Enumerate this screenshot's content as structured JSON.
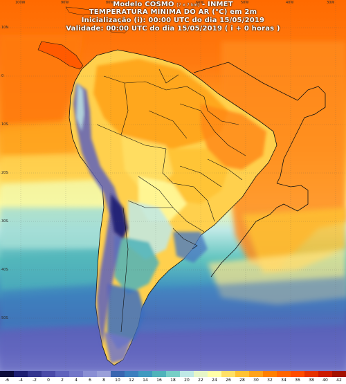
{
  "header": {
    "line1": "Modelo COSMO",
    "line1_res": "[7 x 7 km]",
    "line1_org": "- INMET",
    "line2": "TEMPERATURA MÍNIMA DO AR (°C) em 2m",
    "line3": "Inicialização (i): 00:00 UTC do dia 15/05/2019",
    "line4": "Validade: 00:00 UTC do dia 15/05/2019 ( i + 0 horas )"
  },
  "colorbar": {
    "ticks": [
      "-6",
      "-4",
      "-2",
      "0",
      "2",
      "4",
      "6",
      "8",
      "10",
      "12",
      "14",
      "16",
      "18",
      "20",
      "22",
      "24",
      "26",
      "28",
      "30",
      "32",
      "34",
      "36",
      "38",
      "40",
      "42"
    ],
    "colors": [
      "#0b0b3a",
      "#1e1f72",
      "#33358f",
      "#4a4aa8",
      "#5f62bc",
      "#7276c8",
      "#8a8fd4",
      "#9aa0d9",
      "#3a66b0",
      "#3c7fbe",
      "#3f99c0",
      "#4fb3ba",
      "#76cfc6",
      "#bfe9e6",
      "#e6f6c8",
      "#ffffa8",
      "#ffe066",
      "#ffc233",
      "#ffa31a",
      "#ff8000",
      "#ff6600",
      "#ff4d00",
      "#e63300",
      "#cc1a00",
      "#a31000"
    ]
  },
  "grid": {
    "latitudes": [
      "10N",
      "0",
      "10S",
      "20S",
      "30S",
      "40S",
      "50S"
    ],
    "longitudes": [
      "100W",
      "90W",
      "80W",
      "70W",
      "60W",
      "50W",
      "40W",
      "30W",
      "20W"
    ]
  },
  "map_data": {
    "variable": "TEMPERATURA MÍNIMA DO AR (°C) em 2m",
    "model": "COSMO",
    "resolution": "7 x 7 km",
    "organization": "INMET",
    "init": "00:00 UTC 15/05/2019",
    "valid": "00:00 UTC 15/05/2019",
    "lead_hours": 0
  }
}
